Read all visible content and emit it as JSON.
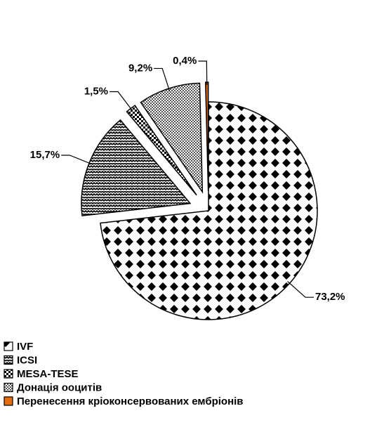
{
  "chart_data": {
    "type": "pie",
    "categories": [
      "IVF",
      "ICSI",
      "MESA-TESE",
      "Донація ооцитів",
      "Перенесення кріоконсервованих ембріонів"
    ],
    "values": [
      73.2,
      15.7,
      1.5,
      9.2,
      0.4
    ],
    "value_labels": [
      "73,2%",
      "15,7%",
      "1,5%",
      "9,2%",
      "0,4%"
    ],
    "colors": [
      "#000000",
      "#000000",
      "#000000",
      "#555555",
      "#e46c0a"
    ],
    "legend": "bottom-left"
  }
}
